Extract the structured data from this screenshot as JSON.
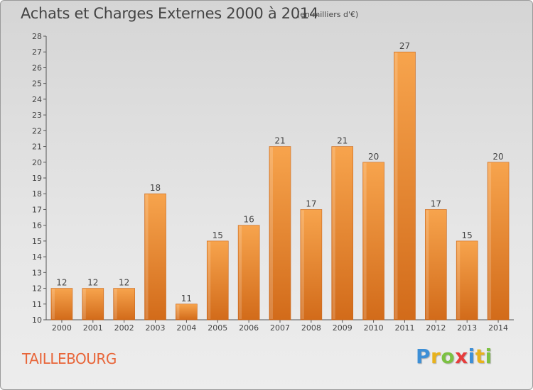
{
  "header": {
    "title": "Achats et Charges Externes 2000 à 2014",
    "unit": "(en milliers d'€)"
  },
  "footer": {
    "commune": "TAILLEBOURG",
    "logo_letters": [
      "P",
      "r",
      "o",
      "x",
      "i",
      "t",
      "i"
    ],
    "logo_colors": [
      "#3d8fd6",
      "#e8b21c",
      "#7cc142",
      "#e63c3c",
      "#3d8fd6",
      "#e8b21c",
      "#7cc142"
    ]
  },
  "colors": {
    "bar_light": "#f7a44d",
    "bar_dark": "#d26b1a",
    "text": "#444444"
  },
  "chart_data": {
    "type": "bar",
    "title": "Achats et Charges Externes 2000 à 2014",
    "subtitle": "(en milliers d'€)",
    "categories": [
      "2000",
      "2001",
      "2002",
      "2003",
      "2004",
      "2005",
      "2006",
      "2007",
      "2008",
      "2009",
      "2010",
      "2011",
      "2012",
      "2013",
      "2014"
    ],
    "values": [
      12,
      12,
      12,
      18,
      11,
      15,
      16,
      21,
      17,
      21,
      20,
      27,
      17,
      15,
      20
    ],
    "ylim": [
      10,
      28
    ],
    "yticks": [
      10,
      11,
      12,
      13,
      14,
      15,
      16,
      17,
      18,
      19,
      20,
      21,
      22,
      23,
      24,
      25,
      26,
      27,
      28
    ],
    "xlabel": "",
    "ylabel": "",
    "grid": false,
    "data_labels": true
  }
}
